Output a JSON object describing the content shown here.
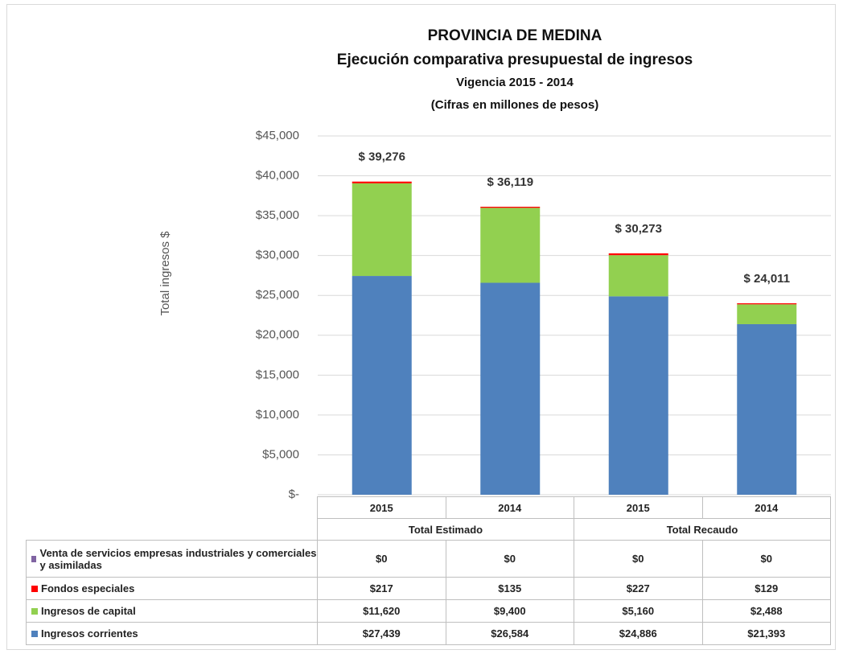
{
  "chart_data": {
    "type": "stacked_bar",
    "title": "PROVINCIA DE MEDINA",
    "subtitle": "Ejecución comparativa presupuestal de ingresos",
    "subtitle2": "Vigencia 2015 - 2014",
    "subtitle3": "(Cifras en millones de pesos)",
    "y_label": "Total ingresos $",
    "categories": [
      "2015",
      "2014",
      "2015",
      "2014"
    ],
    "groups": [
      "Total Estimado",
      "Total Recaudo"
    ],
    "series": [
      {
        "name": "Ingresos corrientes",
        "color": "#4f81bd",
        "values": [
          27439,
          26584,
          24886,
          21393
        ],
        "value_labels": [
          "$27,439",
          "$26,584",
          "$24,886",
          "$21,393"
        ]
      },
      {
        "name": "Ingresos de capital",
        "color": "#92d050",
        "values": [
          11620,
          9400,
          5160,
          2488
        ],
        "value_labels": [
          "$11,620",
          "$9,400",
          "$5,160",
          "$2,488"
        ]
      },
      {
        "name": "Fondos especiales",
        "color": "#ff0000",
        "values": [
          217,
          135,
          227,
          129
        ],
        "value_labels": [
          "$217",
          "$135",
          "$227",
          "$129"
        ]
      },
      {
        "name": "Venta de servicios empresas industriales y comerciales y asimiladas",
        "color": "#8064a2",
        "values": [
          0,
          0,
          0,
          0
        ],
        "value_labels": [
          "$0",
          "$0",
          "$0",
          "$0"
        ]
      }
    ],
    "totals": [
      39276,
      36119,
      30273,
      24011
    ],
    "total_labels": [
      "$ 39,276",
      "$ 36,119",
      "$ 30,273",
      "$ 24,011"
    ],
    "ylim": [
      0,
      45000
    ],
    "yticks": [
      {
        "value": 0,
        "label": "$-"
      },
      {
        "value": 5000,
        "label": "$5,000"
      },
      {
        "value": 10000,
        "label": "$10,000"
      },
      {
        "value": 15000,
        "label": "$15,000"
      },
      {
        "value": 20000,
        "label": "$20,000"
      },
      {
        "value": 25000,
        "label": "$25,000"
      },
      {
        "value": 30000,
        "label": "$30,000"
      },
      {
        "value": 35000,
        "label": "$35,000"
      },
      {
        "value": 40000,
        "label": "$40,000"
      },
      {
        "value": 45000,
        "label": "$45,000"
      }
    ],
    "grid": true
  }
}
